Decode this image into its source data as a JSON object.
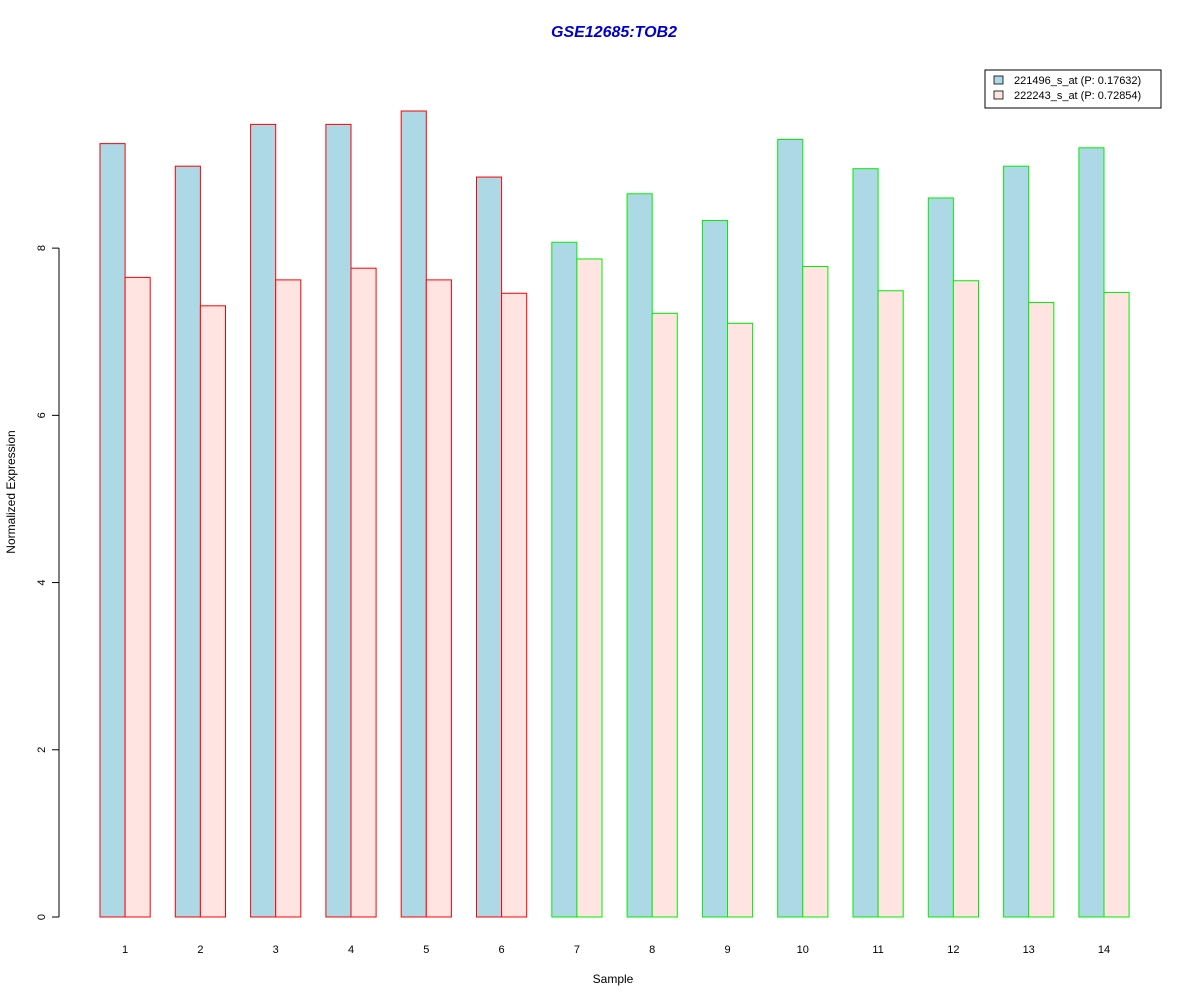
{
  "chart_data": {
    "type": "bar",
    "title": "GSE12685:TOB2",
    "xlabel": "Sample",
    "ylabel": "Normalized Expression",
    "categories": [
      "1",
      "2",
      "3",
      "4",
      "5",
      "6",
      "7",
      "8",
      "9",
      "10",
      "11",
      "12",
      "13",
      "14"
    ],
    "ylim": [
      0,
      10.25
    ],
    "yticks": [
      0,
      2,
      4,
      6,
      8
    ],
    "grid": false,
    "legend_position": "top-right",
    "series": [
      {
        "name": "221496_s_at (P: 0.17632)",
        "fill": "#add8e6",
        "values": [
          9.25,
          8.98,
          9.48,
          9.48,
          9.64,
          8.85,
          8.07,
          8.65,
          8.33,
          9.3,
          8.95,
          8.6,
          8.98,
          9.2
        ]
      },
      {
        "name": "222243_s_at (P: 0.72854)",
        "fill": "#ffe4e1",
        "values": [
          7.65,
          7.31,
          7.62,
          7.76,
          7.62,
          7.46,
          7.87,
          7.22,
          7.1,
          7.78,
          7.49,
          7.61,
          7.35,
          7.47
        ]
      }
    ],
    "group_border_colors": [
      "#ff0000",
      "#ff0000",
      "#ff0000",
      "#ff0000",
      "#ff0000",
      "#ff0000",
      "#00ee00",
      "#00ee00",
      "#00ee00",
      "#00ee00",
      "#00ee00",
      "#00ee00",
      "#00ee00",
      "#00ee00"
    ],
    "title_color": "#0000cd"
  }
}
